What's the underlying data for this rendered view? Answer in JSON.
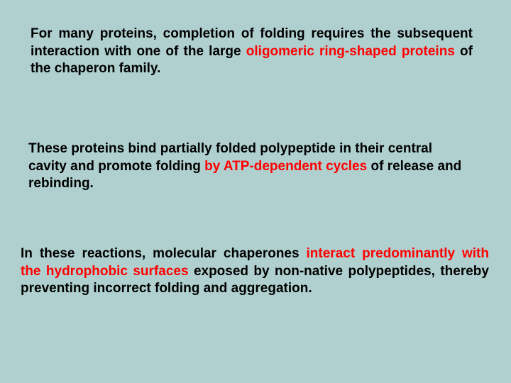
{
  "background_color": "#b0d0d0",
  "text_color": "#000000",
  "highlight_color": "#ff0000",
  "font_family": "Arial",
  "font_size_pt": 14,
  "font_weight": "bold",
  "paragraphs": {
    "p1": {
      "pre": "For many proteins, completion of folding requires the subsequent interaction with one of the large ",
      "highlight": "oligomeric ring-shaped proteins",
      "post": " of the chaperon family."
    },
    "p2": {
      "pre": "These proteins bind partially folded polypeptide in their central cavity and promote folding ",
      "highlight": "by ATP-dependent cycles",
      "post": " of release and rebinding."
    },
    "p3": {
      "pre": "In these reactions, molecular chaperones ",
      "highlight": "interact predominantly with the hydrophobic surfaces",
      "post": " exposed by non-native polypeptides, thereby preventing incorrect folding and aggregation."
    }
  }
}
